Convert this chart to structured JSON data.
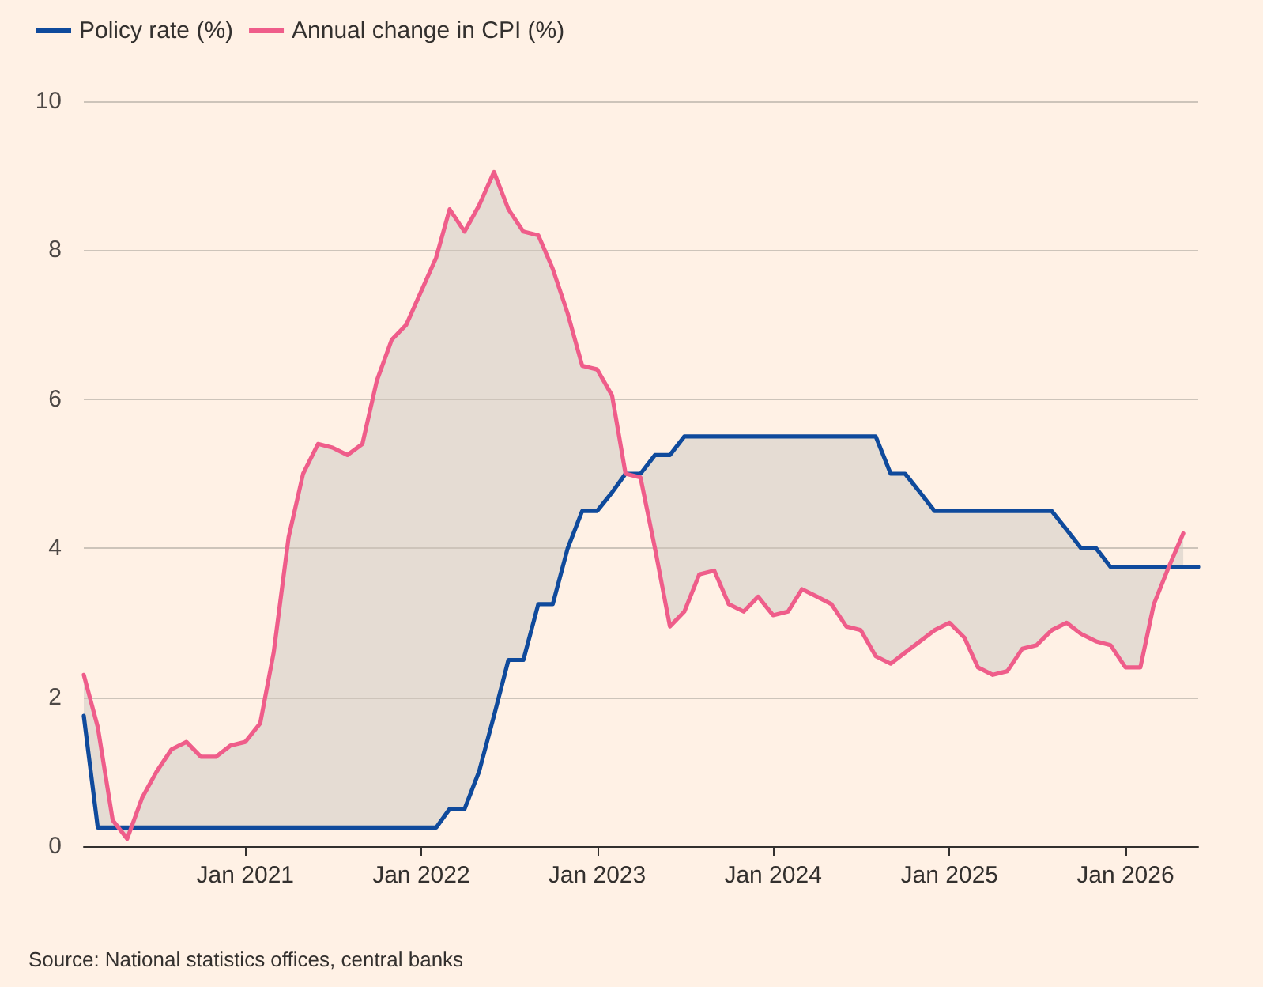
{
  "chart_data": {
    "type": "line",
    "x": [
      "2020-02",
      "2020-03",
      "2020-04",
      "2020-05",
      "2020-06",
      "2020-07",
      "2020-08",
      "2020-09",
      "2020-10",
      "2020-11",
      "2020-12",
      "2021-01",
      "2021-02",
      "2021-03",
      "2021-04",
      "2021-05",
      "2021-06",
      "2021-07",
      "2021-08",
      "2021-09",
      "2021-10",
      "2021-11",
      "2021-12",
      "2022-01",
      "2022-02",
      "2022-03",
      "2022-04",
      "2022-05",
      "2022-06",
      "2022-07",
      "2022-08",
      "2022-09",
      "2022-10",
      "2022-11",
      "2022-12",
      "2023-01",
      "2023-02",
      "2023-03",
      "2023-04",
      "2023-05",
      "2023-06",
      "2023-07",
      "2023-08",
      "2023-09",
      "2023-10",
      "2023-11",
      "2023-12",
      "2024-01",
      "2024-02",
      "2024-03",
      "2024-04",
      "2024-05",
      "2024-06",
      "2024-07",
      "2024-08",
      "2024-09",
      "2024-10",
      "2024-11",
      "2024-12",
      "2025-01",
      "2025-02",
      "2025-03",
      "2025-04",
      "2025-05",
      "2025-06",
      "2025-07",
      "2025-08",
      "2025-09",
      "2025-10",
      "2025-11",
      "2025-12",
      "2026-01",
      "2026-02",
      "2026-03",
      "2026-04",
      "2026-05",
      "2026-06"
    ],
    "series": [
      {
        "name": "Policy rate (%)",
        "color": "#0f4a9c",
        "values": [
          1.75,
          0.25,
          0.25,
          0.25,
          0.25,
          0.25,
          0.25,
          0.25,
          0.25,
          0.25,
          0.25,
          0.25,
          0.25,
          0.25,
          0.25,
          0.25,
          0.25,
          0.25,
          0.25,
          0.25,
          0.25,
          0.25,
          0.25,
          0.25,
          0.25,
          0.5,
          0.5,
          1.0,
          1.75,
          2.5,
          2.5,
          3.25,
          3.25,
          4.0,
          4.5,
          4.5,
          4.75,
          5.0,
          5.0,
          5.25,
          5.25,
          5.5,
          5.5,
          5.5,
          5.5,
          5.5,
          5.5,
          5.5,
          5.5,
          5.5,
          5.5,
          5.5,
          5.5,
          5.5,
          5.5,
          5.0,
          5.0,
          4.75,
          4.5,
          4.5,
          4.5,
          4.5,
          4.5,
          4.5,
          4.5,
          4.5,
          4.5,
          4.25,
          4.0,
          4.0,
          3.75,
          3.75,
          3.75,
          3.75,
          3.75,
          3.75,
          3.75
        ]
      },
      {
        "name": "Annual change in CPI (%)",
        "color": "#ef5d8a",
        "values": [
          2.3,
          1.6,
          0.35,
          0.1,
          0.65,
          1.0,
          1.3,
          1.4,
          1.2,
          1.2,
          1.35,
          1.4,
          1.65,
          2.6,
          4.15,
          5.0,
          5.4,
          5.35,
          5.25,
          5.4,
          6.25,
          6.8,
          7.0,
          7.45,
          7.9,
          8.55,
          8.25,
          8.6,
          9.05,
          8.55,
          8.25,
          8.2,
          7.75,
          7.15,
          6.45,
          6.4,
          6.05,
          5.0,
          4.95,
          4.0,
          2.95,
          3.15,
          3.65,
          3.7,
          3.25,
          3.15,
          3.35,
          3.1,
          3.15,
          3.45,
          3.35,
          3.25,
          2.95,
          2.9,
          2.55,
          2.45,
          2.6,
          2.75,
          2.9,
          3.0,
          2.8,
          2.4,
          2.3,
          2.35,
          2.65,
          2.7,
          2.9,
          3.0,
          2.85,
          2.75,
          2.7,
          2.4,
          2.4,
          3.25,
          3.75,
          4.2,
          null
        ],
        "lower": [
          1.75,
          0.25,
          0.25,
          0.25,
          0.25,
          0.25,
          0.25,
          0.25,
          0.25,
          0.25,
          0.25,
          0.25,
          0.25,
          0.25,
          0.25,
          0.25,
          0.25,
          0.25,
          0.25,
          0.25,
          0.25,
          0.25,
          0.25,
          0.25,
          0.25,
          0.5,
          0.5,
          1.0,
          1.75,
          2.5,
          2.5,
          3.25,
          3.25,
          4.0,
          4.5,
          4.5,
          4.75,
          5.0,
          5.0,
          5.25,
          5.25,
          5.5,
          5.5,
          5.5,
          5.5,
          5.5,
          5.5,
          5.5,
          5.5,
          5.5,
          5.5,
          5.5,
          5.5,
          5.5,
          5.5,
          5.0,
          5.0,
          4.75,
          4.5,
          4.5,
          4.5,
          4.5,
          4.5,
          4.5,
          4.5,
          4.5,
          4.5,
          4.25,
          4.0,
          4.0,
          3.75,
          3.75,
          3.75,
          3.75,
          3.75,
          3.75,
          null
        ],
        "upper": [
          2.3,
          1.6,
          0.35,
          0.1,
          0.65,
          1.0,
          1.3,
          1.4,
          1.2,
          1.2,
          1.35,
          1.4,
          1.65,
          2.6,
          4.15,
          5.0,
          5.4,
          5.35,
          5.25,
          5.4,
          6.25,
          6.8,
          7.0,
          7.45,
          7.9,
          8.55,
          8.25,
          8.6,
          9.05,
          8.55,
          8.25,
          8.2,
          7.75,
          7.15,
          6.45,
          6.4,
          6.05,
          5.0,
          4.95,
          4.0,
          2.95,
          3.15,
          3.65,
          3.7,
          3.25,
          3.15,
          3.35,
          3.1,
          3.15,
          3.45,
          3.35,
          3.25,
          2.95,
          2.9,
          2.55,
          2.45,
          2.6,
          2.75,
          2.9,
          3.0,
          2.8,
          2.4,
          2.3,
          2.35,
          2.65,
          2.7,
          2.9,
          3.0,
          2.85,
          2.75,
          2.7,
          2.4,
          2.4,
          3.25,
          3.75,
          4.2,
          null
        ]
      }
    ],
    "xlim": [
      "2020-02",
      "2026-06"
    ],
    "xticks": [
      {
        "value": "2021-01",
        "label": "Jan 2021"
      },
      {
        "value": "2022-01",
        "label": "Jan 2022"
      },
      {
        "value": "2023-01",
        "label": "Jan 2023"
      },
      {
        "value": "2024-01",
        "label": "Jan 2024"
      },
      {
        "value": "2025-01",
        "label": "Jan 2025"
      },
      {
        "value": "2026-01",
        "label": "Jan 2026"
      }
    ],
    "ylim": [
      0,
      10
    ],
    "yticks": [
      0,
      2,
      4,
      6,
      8,
      10
    ],
    "grid": "y",
    "legend": "top left",
    "marker": "none",
    "line_style": "solid",
    "annotations": [
      "Source: National statistics offices, central banks"
    ]
  }
}
